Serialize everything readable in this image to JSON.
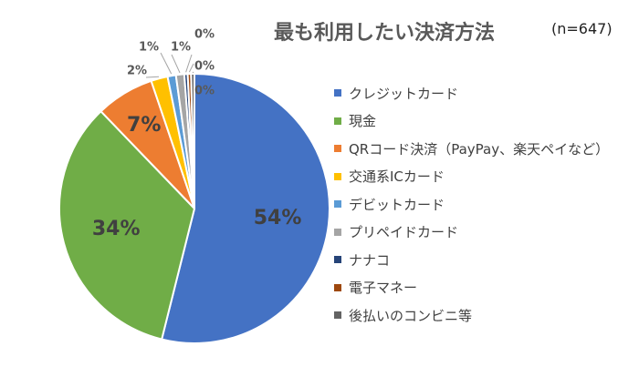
{
  "chart_data": {
    "type": "pie",
    "title": "最も利用したい決済方法",
    "note": "(n=647)",
    "legend_position": "right",
    "slices": [
      {
        "label": "クレジットカード",
        "value": 54,
        "display": "54%",
        "color": "#4472C4"
      },
      {
        "label": "現金",
        "value": 34,
        "display": "34%",
        "color": "#70AD47"
      },
      {
        "label": "QRコード決済（PayPay、楽天ペイなど）",
        "value": 7,
        "display": "7%",
        "color": "#ED7D31"
      },
      {
        "label": "交通系ICカード",
        "value": 2,
        "display": "2%",
        "color": "#FFC000"
      },
      {
        "label": "デビットカード",
        "value": 1,
        "display": "1%",
        "color": "#5B9BD5"
      },
      {
        "label": "プリペイドカード",
        "value": 1,
        "display": "1%",
        "color": "#A5A5A5"
      },
      {
        "label": "ナナコ",
        "value": 0,
        "display": "0%",
        "color": "#264478"
      },
      {
        "label": "電子マネー",
        "value": 0,
        "display": "0%",
        "color": "#9E480E"
      },
      {
        "label": "後払いのコンビニ等",
        "value": 0,
        "display": "0%",
        "color": "#636363"
      }
    ]
  }
}
